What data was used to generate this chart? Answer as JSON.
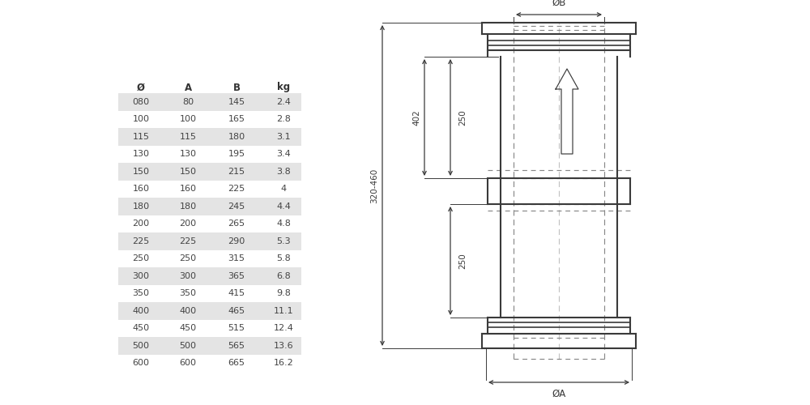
{
  "table_headers": [
    "Ø",
    "A",
    "B",
    "kg"
  ],
  "table_rows": [
    [
      "080",
      "80",
      "145",
      "2.4"
    ],
    [
      "100",
      "100",
      "165",
      "2.8"
    ],
    [
      "115",
      "115",
      "180",
      "3.1"
    ],
    [
      "130",
      "130",
      "195",
      "3.4"
    ],
    [
      "150",
      "150",
      "215",
      "3.8"
    ],
    [
      "160",
      "160",
      "225",
      "4"
    ],
    [
      "180",
      "180",
      "245",
      "4.4"
    ],
    [
      "200",
      "200",
      "265",
      "4.8"
    ],
    [
      "225",
      "225",
      "290",
      "5.3"
    ],
    [
      "250",
      "250",
      "315",
      "5.8"
    ],
    [
      "300",
      "300",
      "365",
      "6.8"
    ],
    [
      "350",
      "350",
      "415",
      "9.8"
    ],
    [
      "400",
      "400",
      "465",
      "11.1"
    ],
    [
      "450",
      "450",
      "515",
      "12.4"
    ],
    [
      "500",
      "500",
      "565",
      "13.6"
    ],
    [
      "600",
      "600",
      "665",
      "16.2"
    ]
  ],
  "shaded_rows": [
    0,
    2,
    4,
    6,
    8,
    10,
    12,
    14
  ],
  "bg_color": "#ffffff",
  "shaded_color": "#e4e4e4",
  "text_color": "#444444",
  "header_color": "#333333",
  "line_color": "#3a3a3a",
  "dashed_color": "#888888"
}
